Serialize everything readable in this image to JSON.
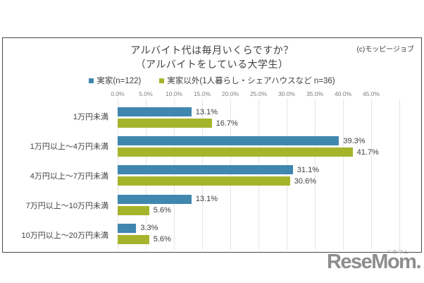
{
  "page": {
    "copyright": "(c)モッピージョブ",
    "logo_text": "ReseMom.",
    "logo_ruby": "リセマム"
  },
  "chart_data": {
    "type": "bar",
    "orientation": "horizontal",
    "title": "アルバイト代は毎月いくらですか？",
    "subtitle": "（アルバイトをしている大学生）",
    "categories": [
      "1万円未満",
      "1万円以上～4万円未満",
      "4万円以上～7万円未満",
      "7万円以上～10万円未満",
      "10万円以上～20万円未満"
    ],
    "series": [
      {
        "name": "実家(n=122)",
        "color": "#3f87ae",
        "values": [
          13.1,
          39.3,
          31.1,
          13.1,
          3.3
        ]
      },
      {
        "name": "実家以外(1人暮らし・シェアハウスなど n=36)",
        "color": "#a6b42c",
        "values": [
          16.7,
          41.7,
          30.6,
          5.6,
          5.6
        ]
      }
    ],
    "x_ticks": [
      "0.0%",
      "5.0%",
      "10.0%",
      "15.0%",
      "20.0%",
      "25.0%",
      "30.0%",
      "35.0%",
      "40.0%",
      "45.0%"
    ],
    "xlim": [
      0,
      50
    ],
    "tick_step": 5,
    "xlabel": "",
    "ylabel": "",
    "grid": true,
    "legend_position": "top",
    "value_label_format": "percent_one_decimal"
  }
}
